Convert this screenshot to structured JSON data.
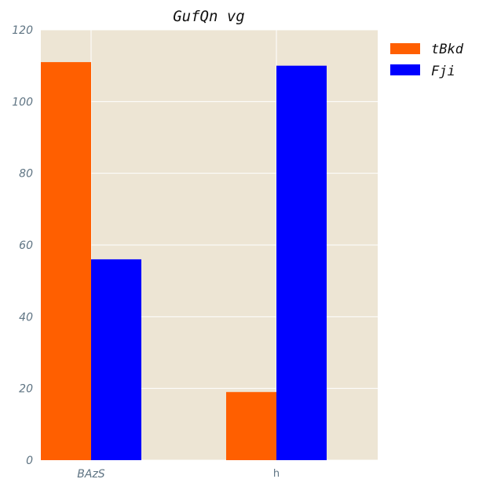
{
  "chart_data": {
    "type": "bar",
    "title": "GufQn vg",
    "xlabel": "",
    "ylabel": "",
    "categories": [
      "BAzS",
      "h"
    ],
    "series": [
      {
        "name": "tBkd",
        "values": [
          111,
          19
        ],
        "color": "#ff5f00"
      },
      {
        "name": "Fji",
        "values": [
          56,
          110
        ],
        "color": "#0000ff"
      }
    ],
    "ylim": [
      0,
      120
    ],
    "yticks": [
      0,
      20,
      40,
      60,
      80,
      100,
      120
    ],
    "grid": true,
    "legend_position": "top-right, outside plot",
    "plot_background": "#ede5d4",
    "grid_color": "#ffffff"
  }
}
